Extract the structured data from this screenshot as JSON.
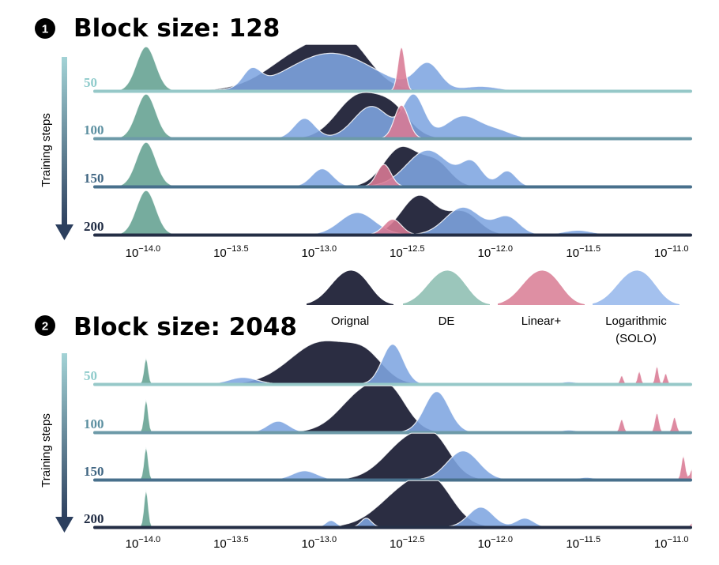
{
  "series_styles": {
    "Orignal": "#2b2d42",
    "DE": "#6fa899",
    "Linear+": "#d97a94",
    "Logarithmic (SOLO)": "#7ea5e0"
  },
  "legend": {
    "items": [
      {
        "label": "Orignal",
        "label2": "",
        "color": "#2b2d42"
      },
      {
        "label": "DE",
        "label2": "",
        "color": "#9bc6bb"
      },
      {
        "label": "Linear+",
        "label2": "",
        "color": "#de8fa3"
      },
      {
        "label": "Logarithmic",
        "label2": "(SOLO)",
        "color": "#a4c1ee"
      }
    ]
  },
  "chart_data": [
    {
      "type": "ridgeline",
      "badge": "1",
      "title": "Block size: 128",
      "ylabel": "Training steps",
      "x_scale": "log10",
      "xlim": [
        -14.3,
        -10.9
      ],
      "xticks": [
        {
          "base": "10",
          "exp": "−14.0",
          "value": -14.0
        },
        {
          "base": "10",
          "exp": "−13.5",
          "value": -13.5
        },
        {
          "base": "10",
          "exp": "−13.0",
          "value": -13.0
        },
        {
          "base": "10",
          "exp": "−12.5",
          "value": -12.5
        },
        {
          "base": "10",
          "exp": "−12.0",
          "value": -12.0
        },
        {
          "base": "10",
          "exp": "−11.5",
          "value": -11.5
        },
        {
          "base": "10",
          "exp": "−11.0",
          "value": -11.0
        }
      ],
      "rows": [
        {
          "step": "50",
          "label_color": "#8ecbcb",
          "base_color": "#96c8c8",
          "Orignal": [
            [
              -13.05,
              1.0,
              0.22
            ],
            [
              -12.85,
              0.55,
              0.12
            ]
          ],
          "DE": [
            [
              -14.0,
              1.0,
              0.055
            ]
          ],
          "Linear+": [
            [
              -12.55,
              1.0,
              0.02
            ]
          ],
          "Logarithmic (SOLO)": [
            [
              -13.4,
              0.38,
              0.05
            ],
            [
              -12.95,
              0.85,
              0.24
            ],
            [
              -12.4,
              0.58,
              0.07
            ],
            [
              -12.1,
              0.1,
              0.1
            ]
          ]
        },
        {
          "step": "100",
          "label_color": "#5b8fa0",
          "base_color": "#6d9aa8",
          "Orignal": [
            [
              -12.8,
              0.92,
              0.12
            ],
            [
              -12.6,
              0.6,
              0.1
            ]
          ],
          "DE": [
            [
              -14.0,
              1.0,
              0.055
            ]
          ],
          "Linear+": [
            [
              -12.55,
              0.75,
              0.04
            ]
          ],
          "Logarithmic (SOLO)": [
            [
              -13.1,
              0.45,
              0.06
            ],
            [
              -12.72,
              0.72,
              0.1
            ],
            [
              -12.48,
              0.95,
              0.06
            ],
            [
              -12.2,
              0.5,
              0.1
            ],
            [
              -12.0,
              0.15,
              0.08
            ]
          ]
        },
        {
          "step": "150",
          "label_color": "#3f6582",
          "base_color": "#48708c",
          "Orignal": [
            [
              -12.55,
              0.88,
              0.1
            ],
            [
              -12.35,
              0.5,
              0.08
            ]
          ],
          "DE": [
            [
              -14.0,
              1.0,
              0.055
            ]
          ],
          "Linear+": [
            [
              -12.65,
              0.5,
              0.04
            ]
          ],
          "Logarithmic (SOLO)": [
            [
              -13.0,
              0.4,
              0.06
            ],
            [
              -12.4,
              0.82,
              0.12
            ],
            [
              -12.15,
              0.5,
              0.06
            ],
            [
              -11.95,
              0.35,
              0.05
            ]
          ]
        },
        {
          "step": "200",
          "label_color": "#1e2a42",
          "base_color": "#242e45",
          "Orignal": [
            [
              -12.45,
              0.88,
              0.1
            ],
            [
              -12.2,
              0.5,
              0.09
            ]
          ],
          "DE": [
            [
              -14.0,
              1.0,
              0.055
            ]
          ],
          "Linear+": [
            [
              -12.6,
              0.35,
              0.05
            ]
          ],
          "Logarithmic (SOLO)": [
            [
              -12.8,
              0.5,
              0.1
            ],
            [
              -12.2,
              0.62,
              0.1
            ],
            [
              -11.95,
              0.4,
              0.07
            ],
            [
              -11.55,
              0.1,
              0.08
            ]
          ]
        }
      ]
    },
    {
      "type": "ridgeline",
      "badge": "2",
      "title": "Block size: 2048",
      "ylabel": "Training steps",
      "x_scale": "log10",
      "xlim": [
        -14.3,
        -10.9
      ],
      "xticks": [
        {
          "base": "10",
          "exp": "−14.0",
          "value": -14.0
        },
        {
          "base": "10",
          "exp": "−13.5",
          "value": -13.5
        },
        {
          "base": "10",
          "exp": "−13.0",
          "value": -13.0
        },
        {
          "base": "10",
          "exp": "−12.5",
          "value": -12.5
        },
        {
          "base": "10",
          "exp": "−12.0",
          "value": -12.0
        },
        {
          "base": "10",
          "exp": "−11.5",
          "value": -11.5
        },
        {
          "base": "10",
          "exp": "−11.0",
          "value": -11.0
        }
      ],
      "rows": [
        {
          "step": "50",
          "label_color": "#8ecbcb",
          "base_color": "#96c8c8",
          "Orignal": [
            [
              -13.0,
              0.95,
              0.18
            ],
            [
              -12.75,
              0.45,
              0.1
            ]
          ],
          "DE": [
            [
              -14.0,
              0.6,
              0.012
            ]
          ],
          "Linear+": [
            [
              -11.3,
              0.2,
              0.01
            ],
            [
              -11.2,
              0.3,
              0.01
            ],
            [
              -11.1,
              0.42,
              0.01
            ],
            [
              -11.05,
              0.25,
              0.01
            ]
          ],
          "Logarithmic (SOLO)": [
            [
              -13.45,
              0.15,
              0.08
            ],
            [
              -12.6,
              0.9,
              0.06
            ],
            [
              -11.6,
              0.05,
              0.05
            ]
          ]
        },
        {
          "step": "100",
          "label_color": "#5b8fa0",
          "base_color": "#6d9aa8",
          "Orignal": [
            [
              -12.75,
              0.95,
              0.14
            ],
            [
              -12.6,
              0.5,
              0.09
            ]
          ],
          "DE": [
            [
              -14.0,
              0.75,
              0.012
            ]
          ],
          "Linear+": [
            [
              -11.0,
              0.35,
              0.012
            ],
            [
              -11.1,
              0.45,
              0.012
            ],
            [
              -11.3,
              0.3,
              0.012
            ]
          ],
          "Logarithmic (SOLO)": [
            [
              -13.25,
              0.25,
              0.06
            ],
            [
              -12.35,
              0.92,
              0.07
            ],
            [
              -11.6,
              0.05,
              0.05
            ]
          ]
        },
        {
          "step": "150",
          "label_color": "#3f6582",
          "base_color": "#48708c",
          "Orignal": [
            [
              -12.5,
              0.92,
              0.14
            ],
            [
              -12.35,
              0.5,
              0.09
            ]
          ],
          "DE": [
            [
              -14.0,
              0.75,
              0.012
            ]
          ],
          "Linear+": [
            [
              -10.95,
              0.55,
              0.012
            ],
            [
              -10.9,
              0.25,
              0.012
            ]
          ],
          "Logarithmic (SOLO)": [
            [
              -13.1,
              0.2,
              0.07
            ],
            [
              -12.2,
              0.65,
              0.09
            ],
            [
              -11.5,
              0.05,
              0.05
            ]
          ]
        },
        {
          "step": "200",
          "label_color": "#1e2a42",
          "base_color": "#242e45",
          "Orignal": [
            [
              -12.5,
              0.92,
              0.16
            ],
            [
              -12.35,
              0.5,
              0.1
            ]
          ],
          "DE": [
            [
              -14.0,
              0.85,
              0.012
            ]
          ],
          "Linear+": [
            [
              -10.9,
              0.1,
              0.01
            ]
          ],
          "Logarithmic (SOLO)": [
            [
              -12.95,
              0.15,
              0.03
            ],
            [
              -12.75,
              0.2,
              0.03
            ],
            [
              -12.1,
              0.45,
              0.07
            ],
            [
              -11.85,
              0.2,
              0.05
            ]
          ]
        }
      ]
    }
  ]
}
